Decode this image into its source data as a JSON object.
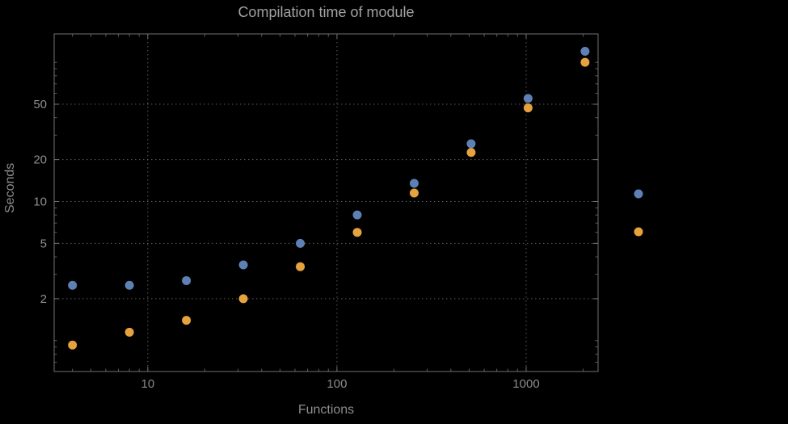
{
  "chart_data": {
    "type": "scatter",
    "title": "Compilation time of module",
    "xlabel": "Functions",
    "ylabel": "Seconds",
    "x_scale": "log",
    "y_scale": "log",
    "xlim": [
      3.2,
      2400
    ],
    "ylim": [
      0.6,
      160
    ],
    "x_ticks": [
      10,
      100,
      1000
    ],
    "y_ticks": [
      2,
      5,
      10,
      20,
      50
    ],
    "grid": "dotted",
    "background": "#000000",
    "x": [
      4,
      8,
      16,
      32,
      64,
      128,
      256,
      512,
      1024,
      2048
    ],
    "series": [
      {
        "name": "",
        "color": "#5E81B5",
        "values": [
          2.5,
          2.5,
          2.7,
          3.5,
          5.0,
          8.0,
          13.5,
          26,
          55,
          120
        ]
      },
      {
        "name": "",
        "color": "#E6A23D",
        "values": [
          0.93,
          1.15,
          1.4,
          2.0,
          3.4,
          6.0,
          11.5,
          22.5,
          47,
          100
        ]
      }
    ],
    "legend": {
      "position": "right-outside",
      "marker_only": true,
      "entries": [
        {
          "label": "",
          "color": "#5E81B5"
        },
        {
          "label": "",
          "color": "#E6A23D"
        }
      ]
    }
  }
}
